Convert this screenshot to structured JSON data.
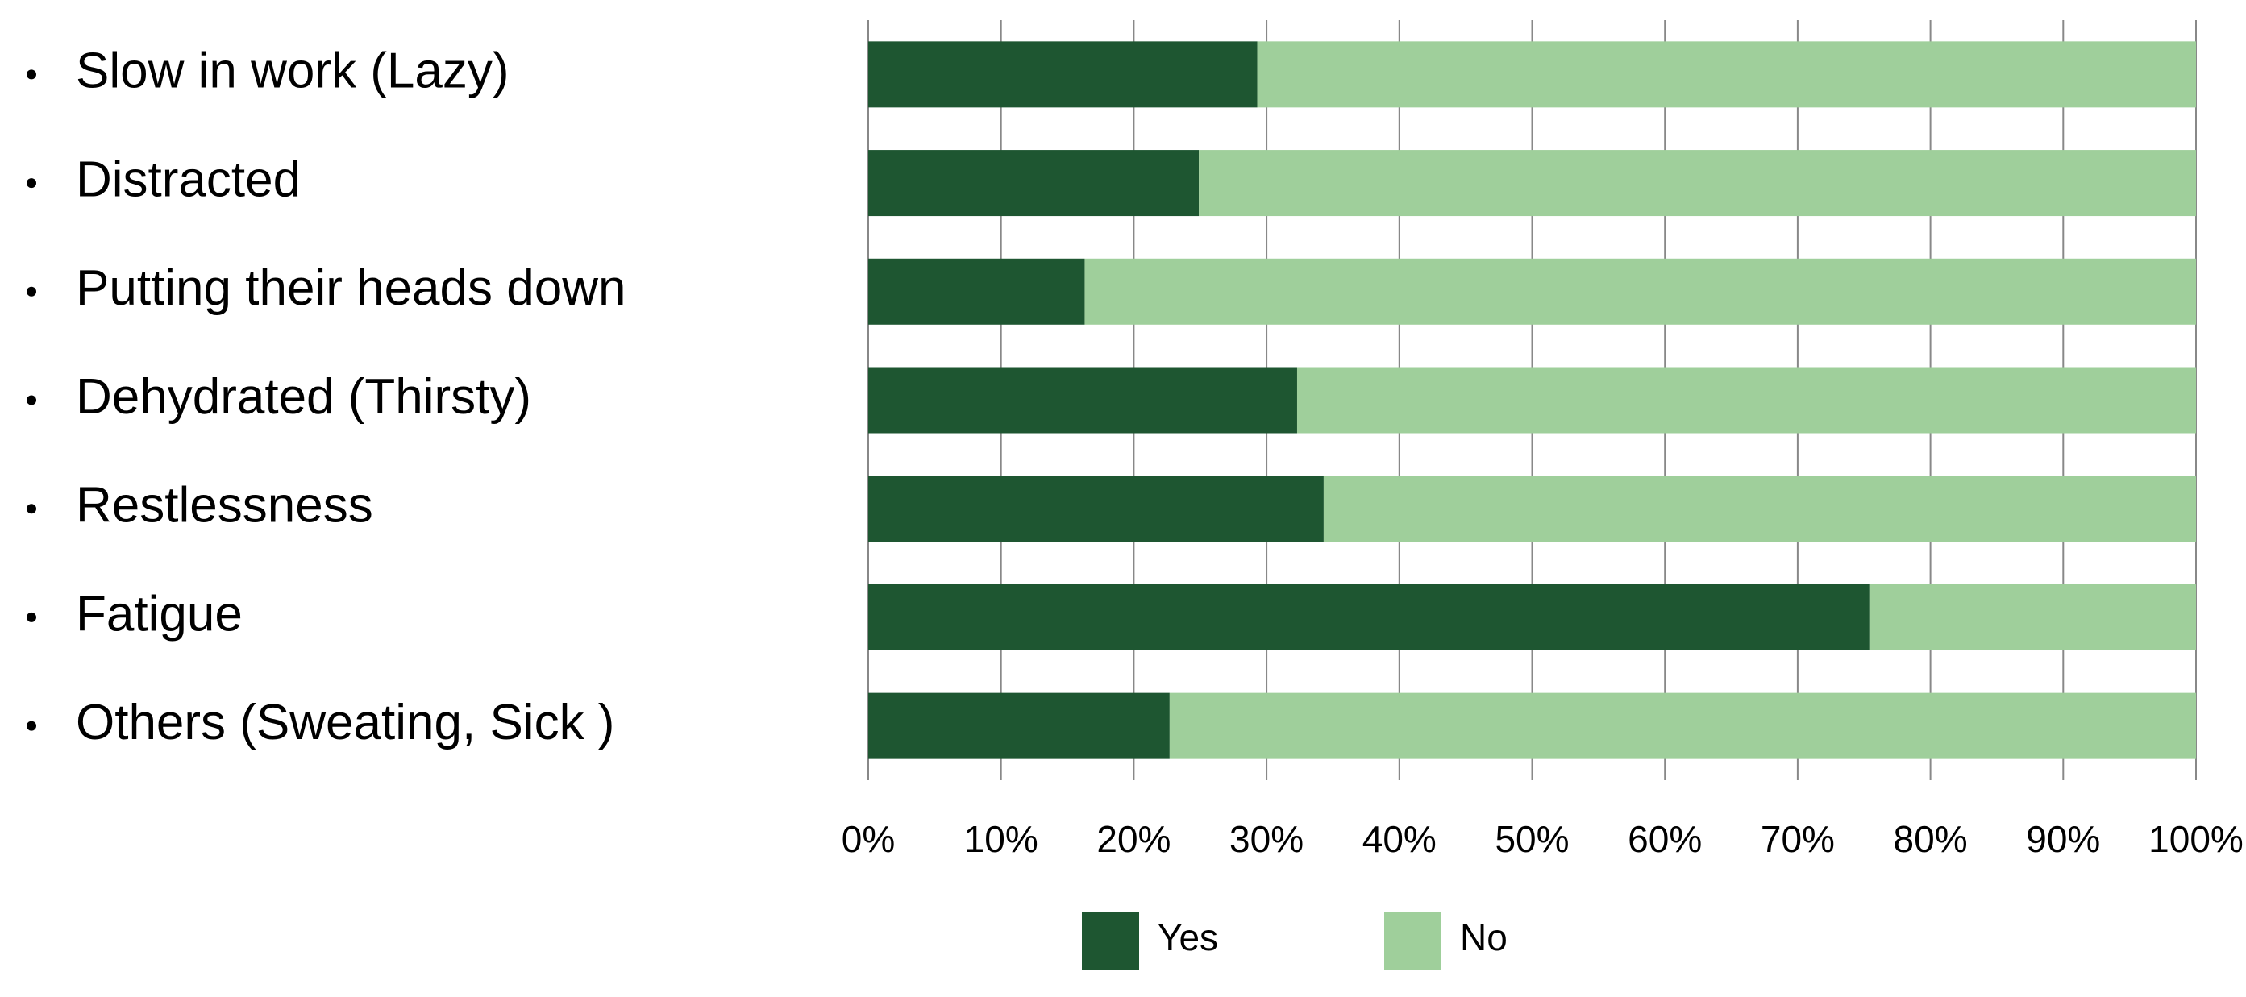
{
  "chart_data": {
    "type": "stacked-bar-horizontal",
    "categories": [
      "Slow in work (Lazy)",
      "Distracted",
      "Putting their heads down",
      "Dehydrated (Thirsty)",
      "Restlessness",
      "Fatigue",
      "Others (Sweating, Sick )"
    ],
    "series": [
      {
        "name": "Yes",
        "color": "#1e5631",
        "values": [
          29.3,
          24.9,
          16.3,
          32.3,
          34.3,
          75.4,
          22.7
        ]
      },
      {
        "name": "No",
        "color": "#9fcf9b",
        "values": [
          70.7,
          75.1,
          83.7,
          67.7,
          65.7,
          24.6,
          77.3
        ]
      }
    ],
    "xlim": [
      0,
      100
    ],
    "xticks": [
      {
        "value": 0,
        "label": "0%"
      },
      {
        "value": 10,
        "label": "10%"
      },
      {
        "value": 20,
        "label": "20%"
      },
      {
        "value": 30,
        "label": "30%"
      },
      {
        "value": 40,
        "label": "40%"
      },
      {
        "value": 50,
        "label": "50%"
      },
      {
        "value": 60,
        "label": "60%"
      },
      {
        "value": 70,
        "label": "70%"
      },
      {
        "value": 80,
        "label": "80%"
      },
      {
        "value": 90,
        "label": "90%"
      },
      {
        "value": 100,
        "label": "100%"
      }
    ],
    "grid": true,
    "legend": "bottom"
  }
}
